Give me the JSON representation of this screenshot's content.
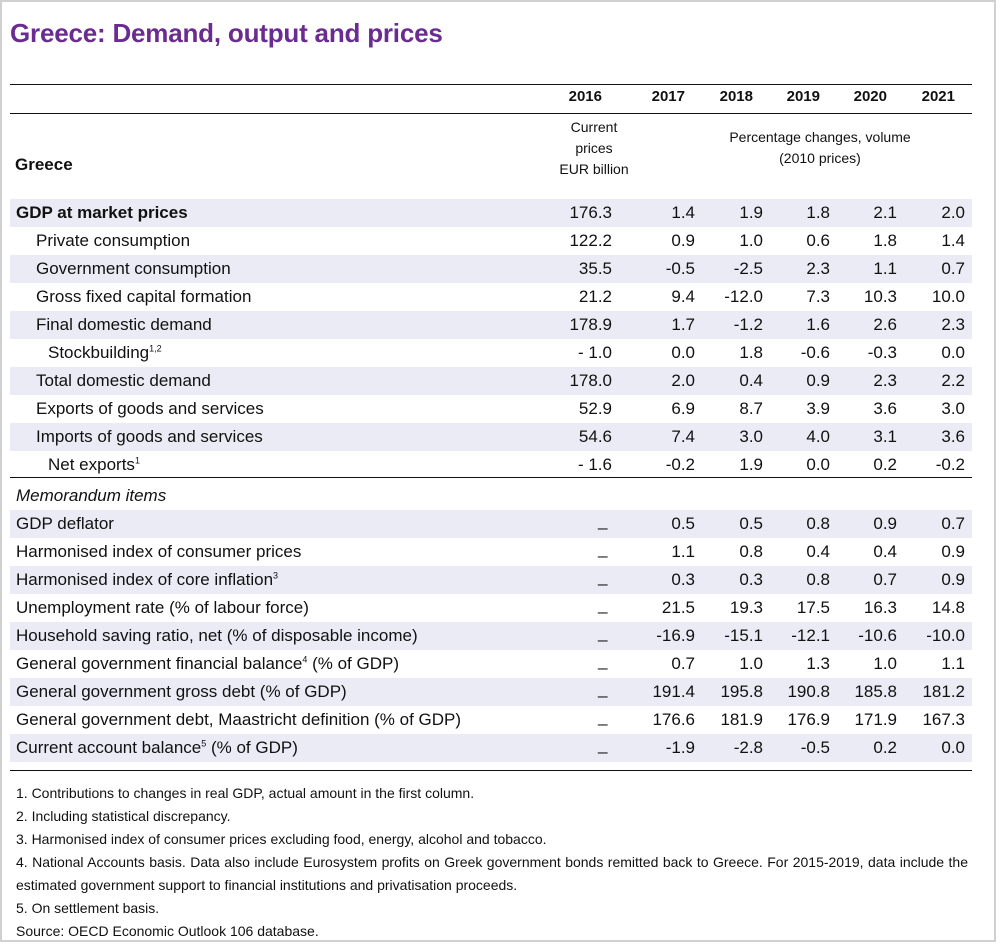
{
  "title": "Greece: Demand, output and prices",
  "years": [
    "2016",
    "2017",
    "2018",
    "2019",
    "2020",
    "2021"
  ],
  "units_current": [
    "Current",
    "prices",
    "EUR billion"
  ],
  "units_pct": [
    "Percentage changes, volume",
    "(2010 prices)"
  ],
  "country": "Greece",
  "rows": [
    {
      "label": "GDP at market prices",
      "sup": "",
      "cur": "176.3",
      "vals": [
        "1.4",
        "1.9",
        "1.8",
        "2.1",
        "2.0"
      ]
    },
    {
      "label": "Private consumption",
      "sup": "",
      "cur": "122.2",
      "vals": [
        "0.9",
        "1.0",
        "0.6",
        "1.8",
        "1.4"
      ]
    },
    {
      "label": "Government consumption",
      "sup": "",
      "cur": "35.5",
      "vals": [
        "-0.5",
        "-2.5",
        "2.3",
        "1.1",
        "0.7"
      ]
    },
    {
      "label": "Gross fixed capital formation",
      "sup": "",
      "cur": "21.2",
      "vals": [
        "9.4",
        "-12.0",
        "7.3",
        "10.3",
        "10.0"
      ]
    },
    {
      "label": "Final domestic demand",
      "sup": "",
      "cur": "178.9",
      "vals": [
        "1.7",
        "-1.2",
        "1.6",
        "2.6",
        "2.3"
      ]
    },
    {
      "label": "Stockbuilding",
      "sup": "1,2",
      "cur": "- 1.0",
      "vals": [
        "0.0",
        "1.8",
        "-0.6",
        "-0.3",
        "0.0"
      ]
    },
    {
      "label": "Total domestic demand",
      "sup": "",
      "cur": "178.0",
      "vals": [
        "2.0",
        "0.4",
        "0.9",
        "2.3",
        "2.2"
      ]
    },
    {
      "label": "Exports of goods and services",
      "sup": "",
      "cur": "52.9",
      "vals": [
        "6.9",
        "8.7",
        "3.9",
        "3.6",
        "3.0"
      ]
    },
    {
      "label": "Imports of goods and services",
      "sup": "",
      "cur": "54.6",
      "vals": [
        "7.4",
        "3.0",
        "4.0",
        "3.1",
        "3.6"
      ]
    },
    {
      "label": "Net exports",
      "sup": "1",
      "cur": "- 1.6",
      "vals": [
        "-0.2",
        "1.9",
        "0.0",
        "0.2",
        "-0.2"
      ]
    }
  ],
  "memo_title": "Memorandum items",
  "memo_dash": "_",
  "memo_rows": [
    {
      "label": "GDP deflator",
      "sup": "",
      "rest": "",
      "vals": [
        "0.5",
        "0.5",
        "0.8",
        "0.9",
        "0.7"
      ]
    },
    {
      "label": "Harmonised index of consumer prices",
      "sup": "",
      "rest": "",
      "vals": [
        "1.1",
        "0.8",
        "0.4",
        "0.4",
        "0.9"
      ]
    },
    {
      "label": "Harmonised index of core inflation",
      "sup": "3",
      "rest": "",
      "vals": [
        "0.3",
        "0.3",
        "0.8",
        "0.7",
        "0.9"
      ]
    },
    {
      "label": "Unemployment rate (% of labour force)",
      "sup": "",
      "rest": "",
      "vals": [
        "21.5",
        "19.3",
        "17.5",
        "16.3",
        "14.8"
      ]
    },
    {
      "label": "Household saving ratio, net (% of disposable income)",
      "sup": "",
      "rest": "",
      "vals": [
        "-16.9",
        "-15.1",
        "-12.1",
        "-10.6",
        "-10.0"
      ]
    },
    {
      "label": "General government financial balance",
      "sup": "4",
      "rest": " (% of GDP)",
      "vals": [
        "0.7",
        "1.0",
        "1.3",
        "1.0",
        "1.1"
      ]
    },
    {
      "label": "General government gross debt (% of GDP)",
      "sup": "",
      "rest": "",
      "vals": [
        "191.4",
        "195.8",
        "190.8",
        "185.8",
        "181.2"
      ]
    },
    {
      "label": "General government debt, Maastricht definition (% of GDP)",
      "sup": "",
      "rest": "",
      "vals": [
        "176.6",
        "181.9",
        "176.9",
        "171.9",
        "167.3"
      ]
    },
    {
      "label": "Current account balance",
      "sup": "5",
      "rest": " (% of GDP)",
      "vals": [
        "-1.9",
        "-2.8",
        "-0.5",
        "0.2",
        "0.0"
      ]
    }
  ],
  "notes": [
    "1. Contributions to changes in real GDP, actual amount in the first column.",
    "2. Including statistical discrepancy.",
    "3. Harmonised index of consumer prices excluding food, energy, alcohol and tobacco.",
    "4. National Accounts basis. Data also include Eurosystem profits on Greek government bonds remitted back to Greece. For 2015-2019, data include the estimated government support to financial institutions and privatisation proceeds.",
    "5. On settlement basis.",
    "Source: OECD Economic Outlook 106 database."
  ],
  "colors": {
    "title": "#6a2c91",
    "shade": "#ebebf5"
  }
}
